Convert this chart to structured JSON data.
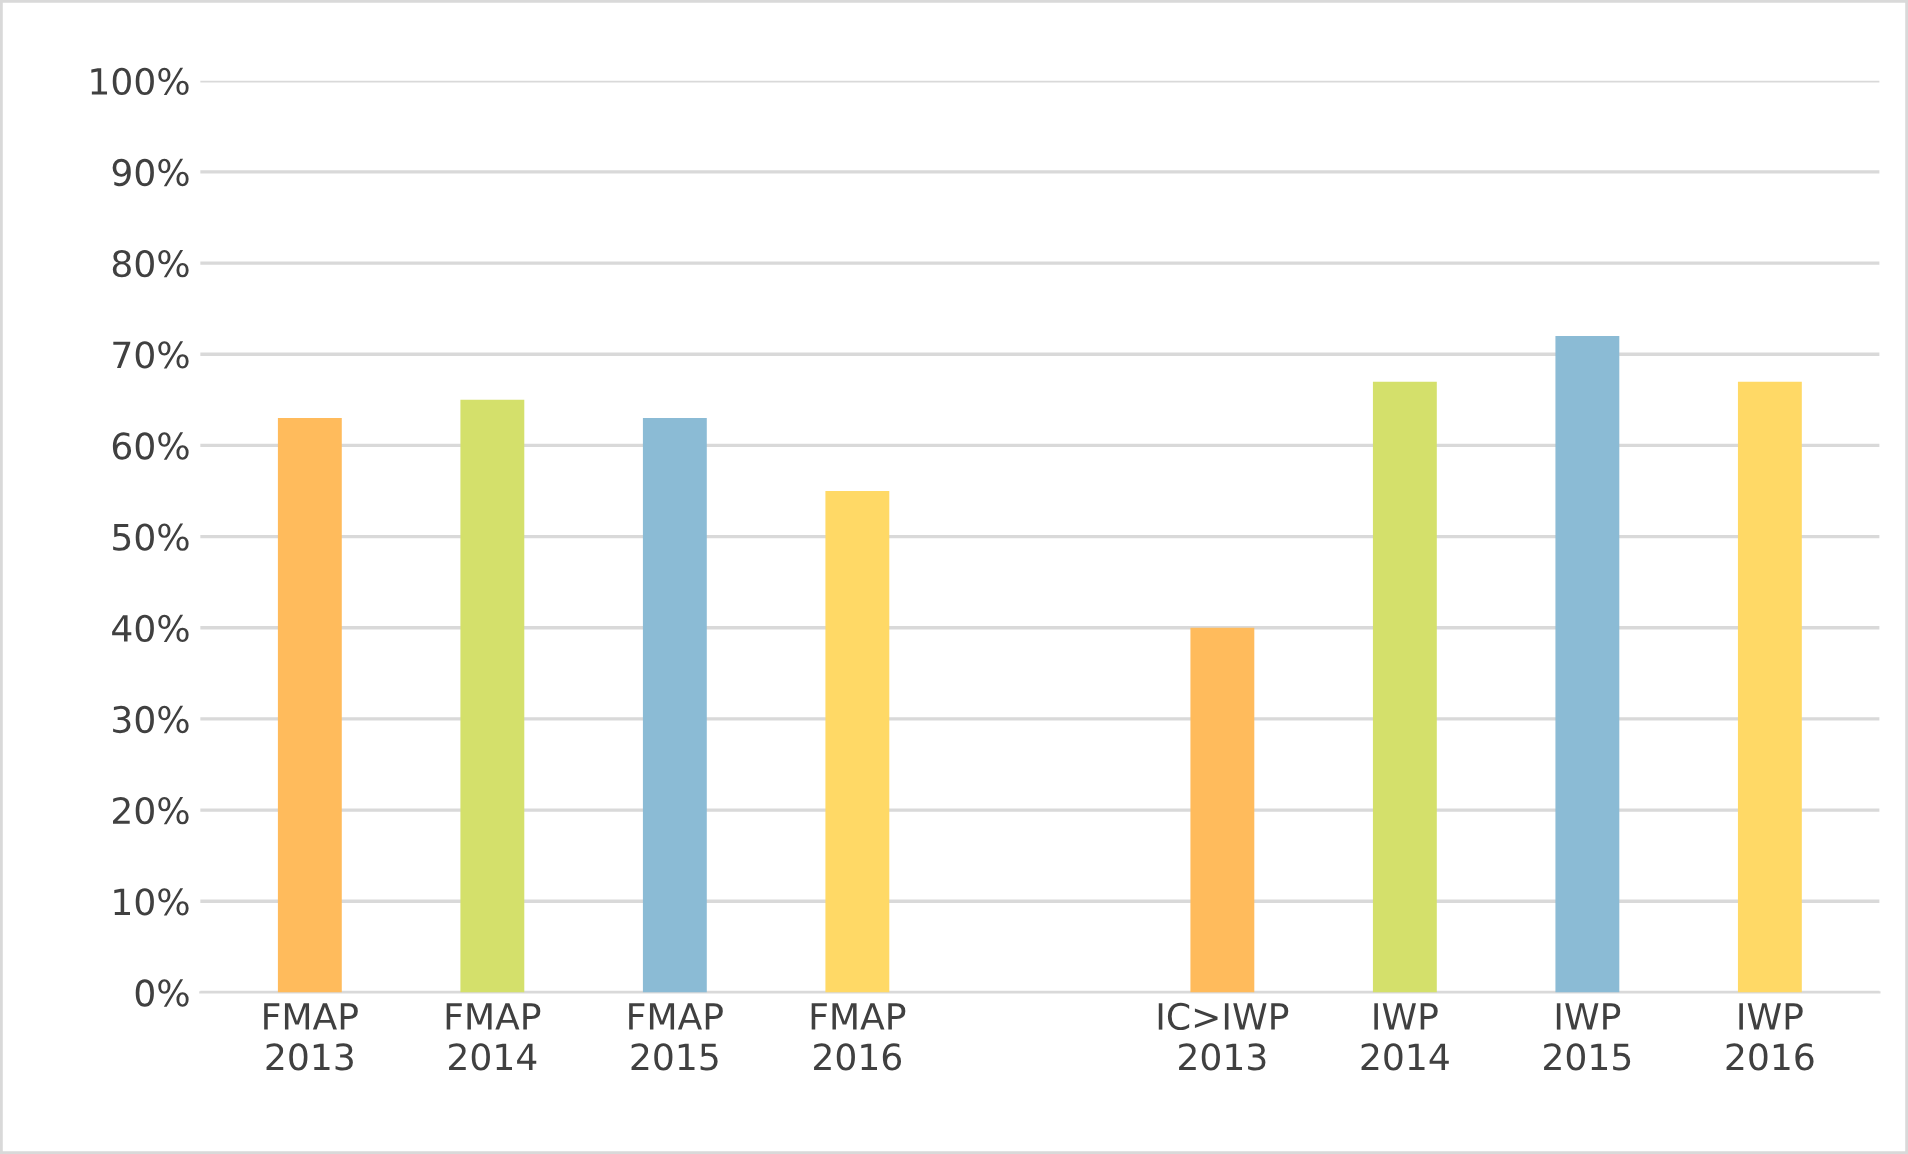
{
  "chart_data": {
    "type": "bar",
    "categories": [
      "FMAP\n2013",
      "FMAP\n2014",
      "FMAP\n2015",
      "FMAP\n2016",
      null,
      "IC>IWP\n2013",
      "IWP\n2014",
      "IWP\n2015",
      "IWP\n2016"
    ],
    "values": [
      63,
      65,
      63,
      55,
      null,
      40,
      67,
      72,
      67
    ],
    "colors": [
      "#ffbb5c",
      "#d4e06b",
      "#8bbbd5",
      "#ffd966",
      null,
      "#ffbb5c",
      "#d4e06b",
      "#8bbbd5",
      "#ffd966"
    ],
    "ylim": [
      0,
      100
    ],
    "yticks": [
      {
        "value": 0,
        "label": "0%"
      },
      {
        "value": 10,
        "label": "10%"
      },
      {
        "value": 20,
        "label": "20%"
      },
      {
        "value": 30,
        "label": "30%"
      },
      {
        "value": 40,
        "label": "40%"
      },
      {
        "value": 50,
        "label": "50%"
      },
      {
        "value": 60,
        "label": "60%"
      },
      {
        "value": 70,
        "label": "70%"
      },
      {
        "value": 80,
        "label": "80%"
      },
      {
        "value": 90,
        "label": "90%"
      },
      {
        "value": 100,
        "label": "100%"
      }
    ],
    "grid": "y",
    "legend": false
  }
}
